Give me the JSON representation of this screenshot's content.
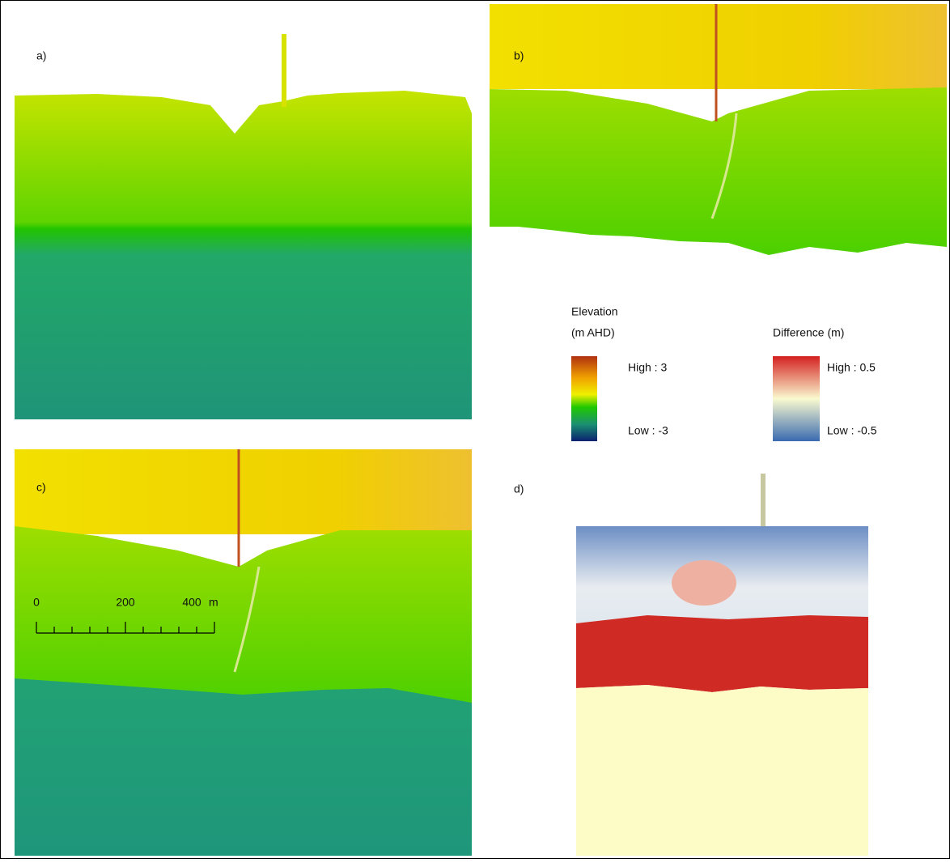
{
  "panels": {
    "a": "a)",
    "b": "b)",
    "c": "c)",
    "d": "d)"
  },
  "legend": {
    "elevation": {
      "title": "Elevation",
      "unit": "(m AHD)",
      "high": "High : 3",
      "low": "Low : -3"
    },
    "difference": {
      "title": "Difference (m)",
      "high": "High : 0.5",
      "low": "Low : -0.5"
    }
  },
  "scale_bar": {
    "labels": [
      "0",
      "200",
      "400"
    ],
    "unit": "m"
  }
}
